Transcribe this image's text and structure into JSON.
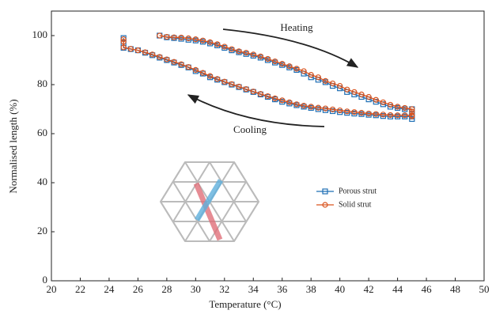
{
  "chart_data": {
    "type": "line",
    "x_label": "Temperature (°C)",
    "y_label": "Normalised length (%)",
    "annotations": [
      "Heating",
      "Cooling"
    ],
    "xlim": [
      20,
      50
    ],
    "xticks": [
      20,
      22,
      24,
      26,
      28,
      30,
      32,
      34,
      36,
      38,
      40,
      42,
      44,
      46,
      48,
      50
    ],
    "ylim": [
      0,
      110
    ],
    "yticks": [
      0,
      20,
      40,
      60,
      80,
      100
    ],
    "x": [
      27.5,
      28,
      28.5,
      29,
      29.5,
      30,
      30.5,
      31,
      31.5,
      32,
      32.5,
      33,
      33.5,
      34,
      34.5,
      35,
      35.5,
      36,
      36.5,
      37,
      37.5,
      38,
      38.5,
      39,
      39.5,
      40,
      40.5,
      41,
      41.5,
      42,
      42.5,
      43,
      43.5,
      44,
      44.5,
      45,
      45,
      45,
      45,
      44.5,
      44,
      43.5,
      43,
      42.5,
      42,
      41.5,
      41,
      40.5,
      40,
      39.5,
      39,
      38.5,
      38,
      37.5,
      37,
      36.5,
      36,
      35.5,
      35,
      34.5,
      34,
      33.5,
      33,
      32.5,
      32,
      31.5,
      31,
      30.5,
      30,
      29.5,
      29,
      28.5,
      28,
      27.5,
      27,
      26.5,
      26,
      25.5,
      25,
      25,
      25
    ],
    "series": [
      {
        "name": "Porous strut",
        "color": "#1f6fb5",
        "marker": "square",
        "values": [
          100,
          99.3,
          99,
          98.7,
          98.3,
          98,
          97.5,
          96.8,
          96,
          95,
          94,
          93.2,
          92.5,
          91.8,
          91,
          90,
          89,
          88,
          87,
          86,
          84.5,
          83,
          82,
          81,
          79.5,
          78.5,
          77,
          76,
          75,
          74,
          73,
          72,
          71,
          70.5,
          70,
          70,
          68,
          66,
          67,
          67,
          67,
          67,
          67.2,
          67.5,
          67.7,
          68,
          68.2,
          68.5,
          68.8,
          69.2,
          69.6,
          70,
          70.5,
          71,
          71.6,
          72.3,
          73,
          74,
          75,
          76,
          77,
          78,
          79,
          80,
          81,
          82,
          83,
          84.5,
          85.5,
          87,
          88,
          89,
          90,
          91,
          92,
          93,
          94,
          94.5,
          95,
          97,
          99
        ]
      },
      {
        "name": "Solid strut",
        "color": "#d9531e",
        "marker": "circle",
        "values": [
          100,
          99.5,
          99.3,
          99.2,
          98.9,
          98.5,
          98,
          97.3,
          96.5,
          95.5,
          94.5,
          93.6,
          93,
          92.3,
          91.5,
          90.5,
          89.5,
          88.5,
          87.5,
          86.5,
          85.5,
          84,
          83,
          81.5,
          80.5,
          79.5,
          78,
          77,
          76,
          75,
          73.8,
          72.8,
          71.8,
          71,
          70.5,
          70,
          69,
          67,
          67.5,
          67.5,
          67.5,
          67.6,
          67.8,
          68,
          68.2,
          68.5,
          68.8,
          69.1,
          69.5,
          69.9,
          70.3,
          70.6,
          71,
          71.4,
          72,
          72.8,
          73.6,
          74.4,
          75.3,
          76.2,
          77.2,
          78.2,
          79.2,
          80.2,
          81.2,
          82.3,
          83.5,
          84.8,
          86,
          87.2,
          88.3,
          89.3,
          90.3,
          91.3,
          92.3,
          93.2,
          94,
          94.6,
          95.2,
          97.5,
          98.5
        ]
      }
    ]
  }
}
